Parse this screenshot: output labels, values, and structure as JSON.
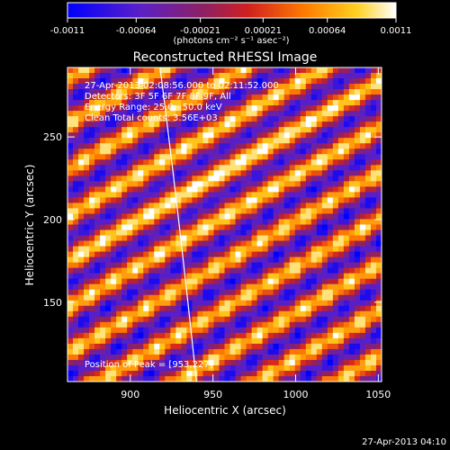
{
  "chart_data": {
    "type": "heatmap",
    "title": "Reconstructed RHESSI Image",
    "xlabel": "Heliocentric X (arcsec)",
    "ylabel": "Heliocentric Y (arcsec)",
    "xlim": [
      862,
      1052
    ],
    "ylim": [
      102,
      292
    ],
    "x_ticks": [
      "900",
      "950",
      "1000",
      "1050"
    ],
    "x_tick_values": [
      900,
      950,
      1000,
      1050
    ],
    "y_ticks": [
      "150",
      "200",
      "250"
    ],
    "y_tick_values": [
      150,
      200,
      250
    ],
    "colorbar": {
      "min": -0.0011,
      "max": 0.0011,
      "tick_labels": [
        "-0.0011",
        "-0.00064",
        "-0.00021",
        "0.00021",
        "0.00064",
        "0.0011"
      ],
      "tick_values": [
        -0.0011,
        -0.00064,
        -0.00021,
        0.00021,
        0.00064,
        0.0011
      ],
      "unit_label": "(photons cm⁻² s⁻¹ asec⁻²)"
    },
    "info_lines": [
      "27-Apr-2013 02:08:56.000 to 02:11:52.000",
      "Detectors: 3F 5F 6F 7F 8F 9F, All",
      "Energy Range: 25.0 - 50.0 keV",
      "Clean     Total counts: 3.56E+03"
    ],
    "peak_label": "Position of Peak = [953,227]",
    "peak": [
      953,
      227
    ],
    "limb_arc": [
      [
        918,
        292
      ],
      [
        940,
        102
      ]
    ],
    "stripe_angle_deg": 30,
    "colors": {
      "low": "#1020ff",
      "mid": "#7a2a6a",
      "high": "#ff8000",
      "top": "#ffffd0"
    }
  },
  "footer": {
    "timestamp": "27-Apr-2013 04:10"
  }
}
